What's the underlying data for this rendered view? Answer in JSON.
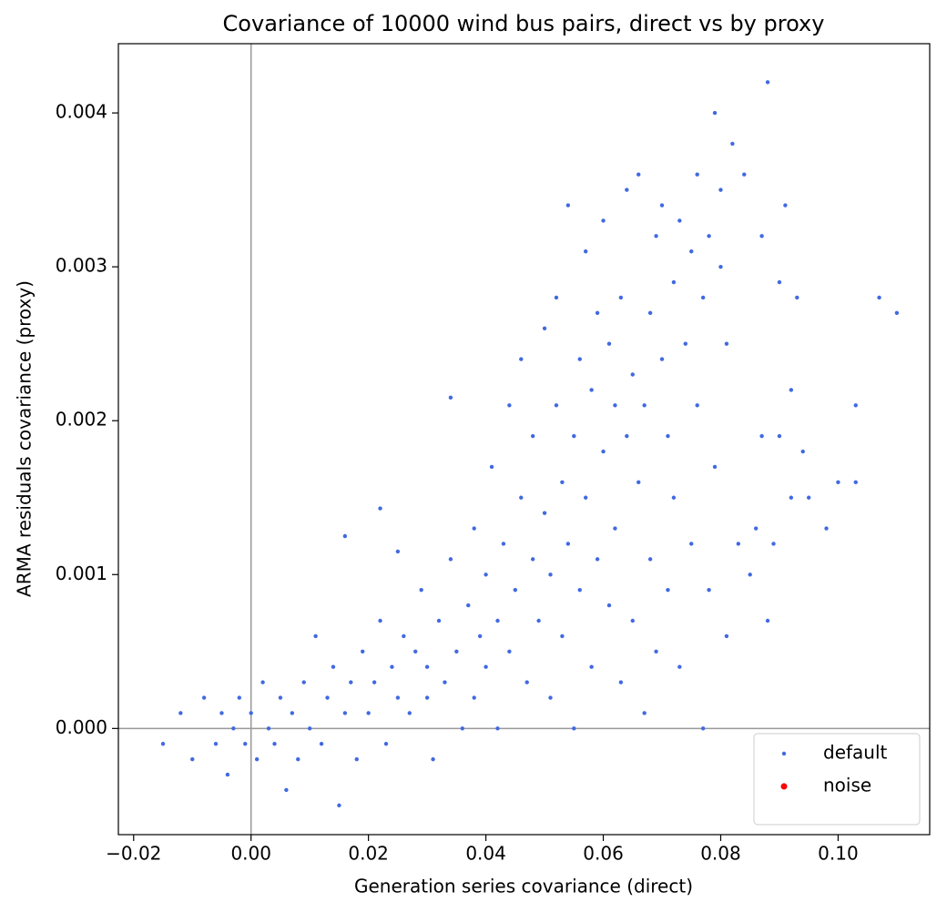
{
  "chart_data": {
    "type": "scatter",
    "title": "Covariance of 10000 wind bus pairs, direct vs by proxy",
    "x_label": "Generation series covariance (direct)",
    "y_label": "ARMA residuals covariance (proxy)",
    "xlim": [
      -0.0226,
      0.1156
    ],
    "ylim": [
      -0.00069,
      0.00445
    ],
    "xticks": [
      {
        "value": -0.02,
        "label": "−0.02"
      },
      {
        "value": 0,
        "label": "0.00"
      },
      {
        "value": 0.02,
        "label": "0.02"
      },
      {
        "value": 0.04,
        "label": "0.04"
      },
      {
        "value": 0.06,
        "label": "0.06"
      },
      {
        "value": 0.08,
        "label": "0.08"
      },
      {
        "value": 0.1,
        "label": "0.10"
      }
    ],
    "yticks": [
      {
        "value": 0,
        "label": "0.000"
      },
      {
        "value": 0.001,
        "label": "0.001"
      },
      {
        "value": 0.002,
        "label": "0.002"
      },
      {
        "value": 0.003,
        "label": "0.003"
      },
      {
        "value": 0.004,
        "label": "0.004"
      }
    ],
    "grid": false,
    "legend": "lower right",
    "series": [
      {
        "name": "default",
        "color": "#4169e1",
        "x": [
          -0.015,
          -0.012,
          -0.01,
          -0.008,
          -0.006,
          -0.005,
          -0.004,
          -0.003,
          -0.002,
          -0.001,
          0.0,
          0.001,
          0.002,
          0.003,
          0.004,
          0.005,
          0.006,
          0.007,
          0.008,
          0.009,
          0.01,
          0.011,
          0.012,
          0.013,
          0.014,
          0.015,
          0.016,
          0.016,
          0.017,
          0.018,
          0.019,
          0.02,
          0.021,
          0.022,
          0.022,
          0.023,
          0.024,
          0.025,
          0.025,
          0.026,
          0.027,
          0.028,
          0.029,
          0.03,
          0.03,
          0.031,
          0.032,
          0.033,
          0.034,
          0.034,
          0.035,
          0.036,
          0.037,
          0.038,
          0.038,
          0.039,
          0.04,
          0.04,
          0.041,
          0.042,
          0.042,
          0.043,
          0.044,
          0.044,
          0.045,
          0.046,
          0.046,
          0.047,
          0.048,
          0.048,
          0.049,
          0.05,
          0.05,
          0.051,
          0.051,
          0.052,
          0.052,
          0.053,
          0.053,
          0.054,
          0.054,
          0.055,
          0.055,
          0.056,
          0.056,
          0.057,
          0.057,
          0.058,
          0.058,
          0.059,
          0.059,
          0.06,
          0.06,
          0.061,
          0.061,
          0.062,
          0.062,
          0.063,
          0.063,
          0.064,
          0.064,
          0.065,
          0.065,
          0.066,
          0.066,
          0.067,
          0.067,
          0.068,
          0.068,
          0.069,
          0.069,
          0.07,
          0.07,
          0.071,
          0.071,
          0.072,
          0.072,
          0.073,
          0.073,
          0.074,
          0.075,
          0.075,
          0.076,
          0.076,
          0.077,
          0.077,
          0.078,
          0.078,
          0.079,
          0.079,
          0.08,
          0.08,
          0.081,
          0.081,
          0.082,
          0.083,
          0.084,
          0.085,
          0.086,
          0.087,
          0.087,
          0.088,
          0.088,
          0.089,
          0.09,
          0.09,
          0.091,
          0.092,
          0.092,
          0.093,
          0.094,
          0.095,
          0.098,
          0.1,
          0.103,
          0.103,
          0.107,
          0.11
        ],
        "values": [
          -0.0001,
          0.0001,
          -0.0002,
          0.0002,
          -0.0001,
          0.0001,
          -0.0003,
          0.0,
          0.0002,
          -0.0001,
          0.0001,
          -0.0002,
          0.0003,
          0.0,
          -0.0001,
          0.0002,
          -0.0004,
          0.0001,
          -0.0002,
          0.0003,
          0.0,
          0.0006,
          -0.0001,
          0.0002,
          0.0004,
          -0.0005,
          0.0001,
          0.00125,
          0.0003,
          -0.0002,
          0.0005,
          0.0001,
          0.0003,
          0.0007,
          0.00143,
          -0.0001,
          0.0004,
          0.0002,
          0.00115,
          0.0006,
          0.0001,
          0.0005,
          0.0009,
          0.0002,
          0.0004,
          -0.0002,
          0.0007,
          0.0003,
          0.00215,
          0.0011,
          0.0005,
          0.0,
          0.0008,
          0.0013,
          0.0002,
          0.0006,
          0.001,
          0.0004,
          0.0017,
          0.0007,
          0.0,
          0.0012,
          0.0021,
          0.0005,
          0.0009,
          0.0024,
          0.0015,
          0.0003,
          0.0011,
          0.0019,
          0.0007,
          0.0014,
          0.0026,
          0.001,
          0.0002,
          0.0021,
          0.0028,
          0.0016,
          0.0006,
          0.0012,
          0.0034,
          0.0019,
          0.0,
          0.0024,
          0.0009,
          0.0031,
          0.0015,
          0.0004,
          0.0022,
          0.0027,
          0.0011,
          0.0018,
          0.0033,
          0.0008,
          0.0025,
          0.0021,
          0.0013,
          0.0003,
          0.0028,
          0.0019,
          0.0035,
          0.0023,
          0.0007,
          0.0016,
          0.0036,
          0.0021,
          0.0001,
          0.0027,
          0.0011,
          0.0032,
          0.0005,
          0.0024,
          0.0034,
          0.0009,
          0.0019,
          0.0029,
          0.0015,
          0.0033,
          0.0004,
          0.0025,
          0.0031,
          0.0012,
          0.0036,
          0.0021,
          0.0028,
          0.0,
          0.0032,
          0.0009,
          0.004,
          0.0017,
          0.003,
          0.0035,
          0.0025,
          0.0006,
          0.0038,
          0.0012,
          0.0036,
          0.001,
          0.0013,
          0.0032,
          0.0019,
          0.0042,
          0.0007,
          0.0012,
          0.0029,
          0.0019,
          0.0034,
          0.0022,
          0.0015,
          0.0028,
          0.0018,
          0.0015,
          0.0013,
          0.0016,
          0.0021,
          0.0016,
          0.0028,
          0.0027
        ]
      },
      {
        "name": "noise",
        "color": "#ff0000",
        "x": [],
        "values": []
      }
    ]
  }
}
